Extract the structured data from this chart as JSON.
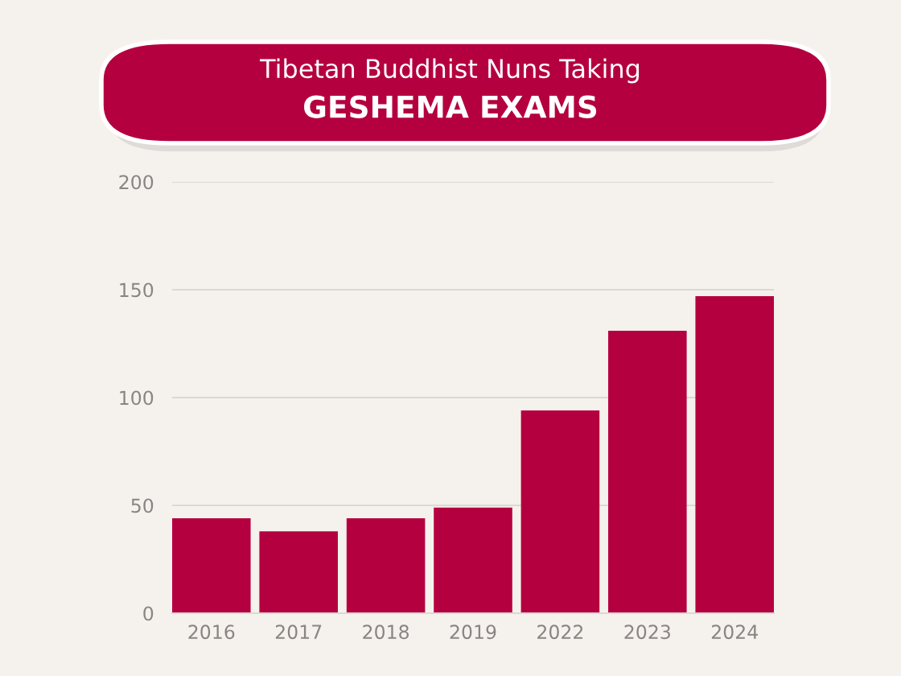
{
  "chart_data": {
    "type": "bar",
    "title": "Tibetan Buddhist Nuns Taking",
    "subtitle": "GESHEMA EXAMS",
    "categories": [
      "2016",
      "2017",
      "2018",
      "2019",
      "2022",
      "2023",
      "2024"
    ],
    "values": [
      44,
      38,
      44,
      49,
      94,
      131,
      147
    ],
    "color": "#b5003f",
    "ylim": [
      0,
      200
    ],
    "yticks": [
      0,
      50,
      100,
      150,
      200
    ],
    "grid": "y"
  }
}
